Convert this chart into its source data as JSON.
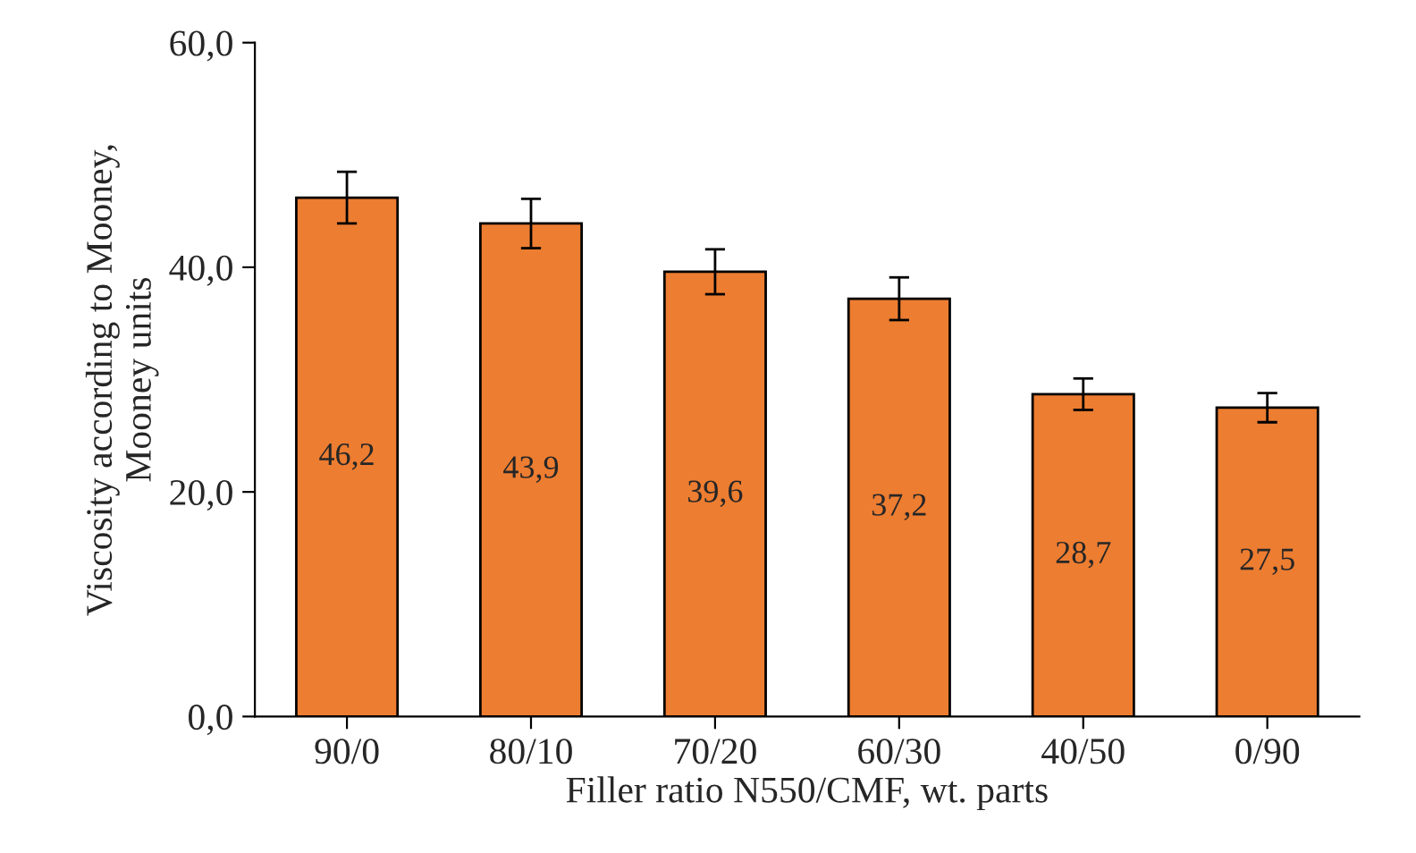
{
  "chart_data": {
    "type": "bar",
    "xlabel": "Filler ratio N550/CMF, wt. parts",
    "ylabel": "Viscosity according to Mooney,\nMooney units",
    "categories": [
      "90/0",
      "80/10",
      "70/20",
      "60/30",
      "40/50",
      "0/90"
    ],
    "values": [
      46.2,
      43.9,
      39.6,
      37.2,
      28.7,
      27.5
    ],
    "errors": [
      2.3,
      2.2,
      2.0,
      1.9,
      1.4,
      1.3
    ],
    "value_labels": [
      "46,2",
      "43,9",
      "39,6",
      "37,2",
      "28,7",
      "27,5"
    ],
    "color": "#ed7d31",
    "ylim": [
      0,
      60
    ],
    "yticks": [
      {
        "value": 0,
        "label": "0,0"
      },
      {
        "value": 20,
        "label": "20,0"
      },
      {
        "value": 40,
        "label": "40,0"
      },
      {
        "value": 60,
        "label": "60,0"
      }
    ],
    "grid": false,
    "legend": false
  }
}
